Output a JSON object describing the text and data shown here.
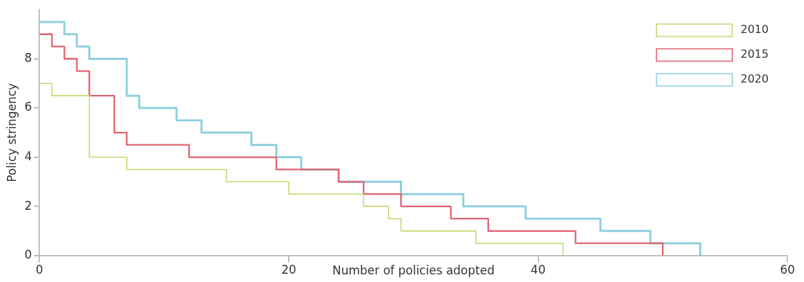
{
  "chart_data": {
    "type": "step",
    "xlabel": "Number of policies adopted",
    "ylabel": "Policy stringency",
    "xlim": [
      0,
      60
    ],
    "xticks": [
      0,
      20,
      40,
      60
    ],
    "ylim": [
      0,
      10
    ],
    "yticks": [
      0,
      2,
      4,
      6,
      8
    ],
    "grid": false,
    "legend": "top right",
    "marker": "none",
    "line_style": "solid",
    "series": [
      {
        "name": "2010",
        "color": "#c5d86d",
        "x": [
          0,
          1,
          4,
          7,
          15,
          20,
          26,
          28,
          29,
          35,
          42
        ],
        "values": [
          7,
          6.5,
          4,
          3.5,
          3,
          2.5,
          2,
          1.5,
          1,
          0.5,
          0
        ]
      },
      {
        "name": "2015",
        "color": "#e0606e",
        "x": [
          0,
          1,
          2,
          3,
          4,
          6,
          7,
          12,
          19,
          24,
          26,
          29,
          33,
          36,
          43,
          50
        ],
        "values": [
          9,
          8.5,
          8,
          7.5,
          6.5,
          5,
          4.5,
          4,
          3.5,
          3,
          2.5,
          2,
          1.5,
          1,
          0.5,
          0
        ]
      },
      {
        "name": "2020",
        "color": "#8dcfe0",
        "x": [
          0,
          2,
          3,
          4,
          7,
          8,
          11,
          13,
          17,
          19,
          21,
          24,
          29,
          34,
          39,
          45,
          49,
          53
        ],
        "values": [
          9.5,
          9,
          8.5,
          8,
          6.5,
          6,
          5.5,
          5,
          4.5,
          4,
          3.5,
          3,
          2.5,
          2,
          1.5,
          1,
          0.5,
          0
        ]
      }
    ]
  }
}
